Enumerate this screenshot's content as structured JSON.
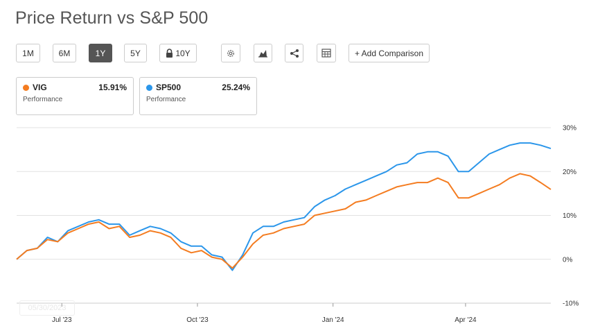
{
  "title": "Price Return vs S&P 500",
  "toolbar": {
    "ranges": [
      "1M",
      "6M",
      "1Y",
      "5Y",
      "10Y"
    ],
    "active_range": "1Y",
    "settings_icon": "gear-icon",
    "chart_type_icon": "mountain-chart-icon",
    "share_icon": "share-icon",
    "table_icon": "table-icon",
    "lock_icon": "lock-icon",
    "add_comparison_label": "+ Add Comparison"
  },
  "legend": [
    {
      "ticker": "VIG",
      "value": "15.91%",
      "label": "Performance",
      "color": "#f47c20"
    },
    {
      "ticker": "SP500",
      "value": "25.24%",
      "label": "Performance",
      "color": "#2b96ea"
    }
  ],
  "watermark": "05/30/2023",
  "chart_data": {
    "type": "line",
    "title": "Price Return vs S&P 500",
    "ylim": [
      -10,
      30
    ],
    "y_ticks": [
      -10,
      0,
      10,
      20,
      30
    ],
    "y_tick_labels": [
      "-10%",
      "0%",
      "10%",
      "20%",
      "30%"
    ],
    "x_ticks": [
      "Jul '23",
      "Oct '23",
      "Jan '24",
      "Apr '24"
    ],
    "grid": true,
    "axis_side": "right",
    "x_range_weeks": [
      0,
      52
    ],
    "x_tick_weeks": [
      4.4,
      17.6,
      30.8,
      43.7
    ],
    "series": [
      {
        "name": "SP500",
        "color": "#2b96ea",
        "x": [
          0,
          1,
          2,
          3,
          4,
          5,
          6,
          7,
          8,
          9,
          10,
          11,
          12,
          13,
          14,
          15,
          16,
          17,
          18,
          19,
          20,
          21,
          22,
          23,
          24,
          25,
          26,
          27,
          28,
          29,
          30,
          31,
          32,
          33,
          34,
          35,
          36,
          37,
          38,
          39,
          40,
          41,
          42,
          43,
          44,
          45,
          46,
          47,
          48,
          49,
          50,
          51,
          52
        ],
        "y": [
          0,
          2,
          2.5,
          5,
          4,
          6.5,
          7.5,
          8.5,
          9,
          8,
          8,
          5.5,
          6.5,
          7.5,
          7,
          6,
          4,
          3,
          3,
          1,
          0.5,
          -2.5,
          1,
          6,
          7.5,
          7.5,
          8.5,
          9,
          9.5,
          12,
          13.5,
          14.5,
          16,
          17,
          18,
          19,
          20,
          21.5,
          22,
          24,
          24.5,
          24.5,
          23.5,
          20,
          20,
          22,
          24,
          25,
          26,
          26.5,
          26.5,
          26,
          25.24
        ]
      },
      {
        "name": "VIG",
        "color": "#f47c20",
        "x": [
          0,
          1,
          2,
          3,
          4,
          5,
          6,
          7,
          8,
          9,
          10,
          11,
          12,
          13,
          14,
          15,
          16,
          17,
          18,
          19,
          20,
          21,
          22,
          23,
          24,
          25,
          26,
          27,
          28,
          29,
          30,
          31,
          32,
          33,
          34,
          35,
          36,
          37,
          38,
          39,
          40,
          41,
          42,
          43,
          44,
          45,
          46,
          47,
          48,
          49,
          50,
          51,
          52
        ],
        "y": [
          0,
          2,
          2.5,
          4.5,
          4,
          6,
          7,
          8,
          8.5,
          7,
          7.5,
          5,
          5.5,
          6.5,
          6,
          5,
          2.5,
          1.5,
          2,
          0.5,
          0,
          -2,
          0.5,
          3.5,
          5.5,
          6,
          7,
          7.5,
          8,
          10,
          10.5,
          11,
          11.5,
          13,
          13.5,
          14.5,
          15.5,
          16.5,
          17,
          17.5,
          17.5,
          18.5,
          17.5,
          14,
          14,
          15,
          16,
          17,
          18.5,
          19.5,
          19,
          17.5,
          15.91
        ]
      }
    ]
  }
}
